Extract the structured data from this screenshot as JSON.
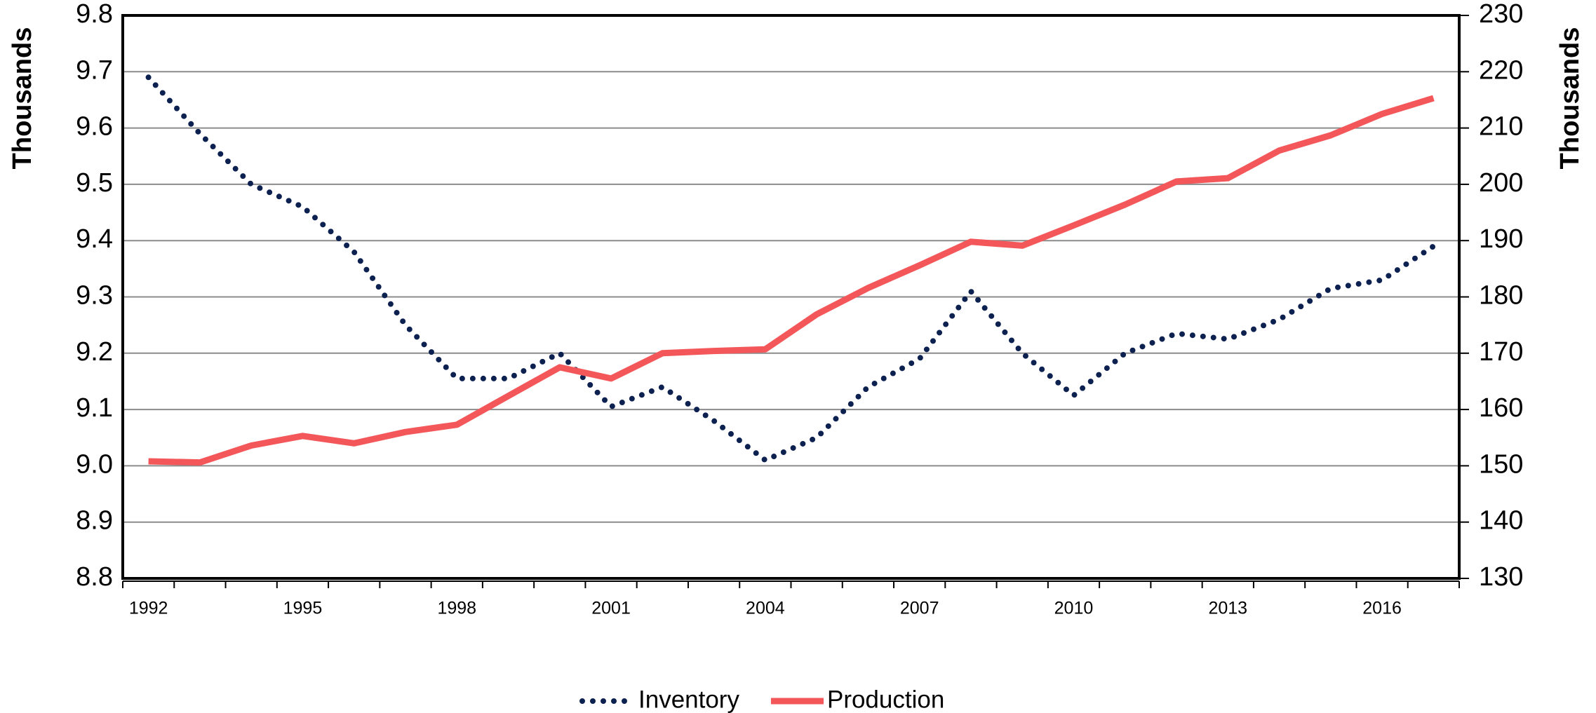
{
  "chart_data": {
    "type": "line",
    "y_label": "Thousands",
    "y2_label": "Thousands",
    "categories": [
      "1992",
      null,
      null,
      "1995",
      null,
      null,
      "1998",
      null,
      null,
      "2001",
      null,
      null,
      "2004",
      null,
      null,
      "2007",
      null,
      null,
      "2010",
      null,
      null,
      "2013",
      null,
      null,
      "2016",
      null
    ],
    "ylim": [
      8.8,
      9.8
    ],
    "yticks": [
      {
        "value": 8.8,
        "label": "8.8"
      },
      {
        "value": 8.9,
        "label": "8.9"
      },
      {
        "value": 9,
        "label": "9.0"
      },
      {
        "value": 9.1,
        "label": "9.1"
      },
      {
        "value": 9.2,
        "label": "9.2"
      },
      {
        "value": 9.3,
        "label": "9.3"
      },
      {
        "value": 9.4,
        "label": "9.4"
      },
      {
        "value": 9.5,
        "label": "9.5"
      },
      {
        "value": 9.6,
        "label": "9.6"
      },
      {
        "value": 9.7,
        "label": "9.7"
      },
      {
        "value": 9.8,
        "label": "9.8"
      }
    ],
    "y2lim": [
      130,
      230
    ],
    "y2ticks": [
      130,
      140,
      150,
      160,
      170,
      180,
      190,
      200,
      210,
      220,
      230
    ],
    "grid": true,
    "legend": "bottom",
    "series": [
      {
        "name": "Inventory",
        "color": "#0d2150",
        "style": "dotted",
        "values": [
          9.69,
          9.59,
          9.5,
          9.46,
          9.38,
          9.25,
          9.155,
          9.155,
          9.2,
          9.105,
          9.14,
          9.08,
          9.01,
          9.05,
          9.14,
          9.19,
          9.31,
          9.2,
          9.125,
          9.2,
          9.235,
          9.225,
          9.26,
          9.315,
          9.33,
          9.39
        ]
      },
      {
        "name": "Production",
        "color": "#f4575a",
        "style": "solid",
        "axis": "y2",
        "values": [
          150.8,
          150.6,
          153.6,
          155.3,
          154,
          156,
          157.3,
          162.4,
          167.5,
          165.5,
          170,
          170.4,
          170.7,
          176.9,
          181.6,
          185.6,
          189.8,
          189.1,
          192.7,
          196.4,
          200.5,
          201.1,
          206,
          208.7,
          212.5,
          215.3
        ]
      }
    ]
  }
}
